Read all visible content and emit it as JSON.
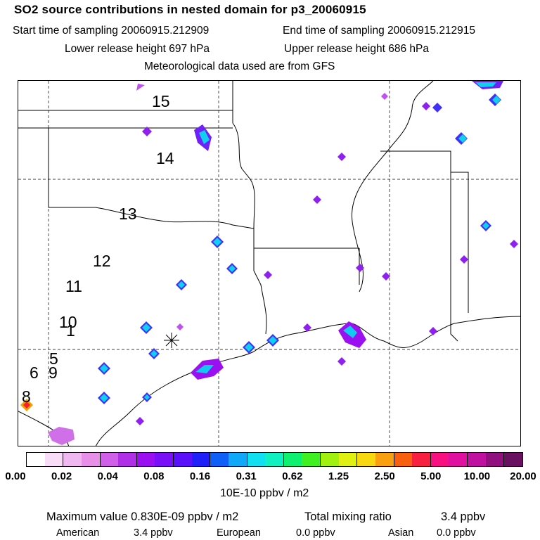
{
  "header": {
    "title": "SO2 source contributions in nested domain for p3_20060915",
    "start_time": "Start time of sampling 20060915.212909",
    "end_time": "End time of sampling 20060915.212915",
    "lower_height": "Lower release height  697 hPa",
    "upper_height": "Upper release height  686 hPa",
    "met_data": "Meteorological data used are from GFS"
  },
  "map": {
    "trajectory_labels": [
      "15",
      "14",
      "13",
      "12",
      "11",
      "10",
      "1",
      "5",
      "6",
      "9",
      "8"
    ],
    "receptor_marker": "receptor-star"
  },
  "colorbar": {
    "colors": [
      "#ffffff",
      "#f8dcf8",
      "#f0b8f0",
      "#e890e8",
      "#d060e8",
      "#b030e8",
      "#9a10f0",
      "#7a10f8",
      "#5a10f8",
      "#2020f8",
      "#1060f8",
      "#10a8f8",
      "#10e0f0",
      "#10f0c0",
      "#10f070",
      "#40f020",
      "#a0f010",
      "#e0f010",
      "#f8d810",
      "#f8a010",
      "#f86010",
      "#f82040",
      "#f81080",
      "#e010a0",
      "#c010a0",
      "#901080",
      "#6a1060"
    ],
    "ticks": [
      "0.00",
      "0.02",
      "0.04",
      "0.08",
      "0.16",
      "0.31",
      "0.62",
      "1.25",
      "2.50",
      "5.00",
      "10.00",
      "20.00"
    ],
    "units": "10E-10 ppbv / m2"
  },
  "footer": {
    "max_value": "Maximum value  0.830E-09 ppbv / m2",
    "total_label": "Total mixing ratio",
    "total_value": "3.4 ppbv",
    "american_label": "American",
    "american_value": "3.4 ppbv",
    "european_label": "European",
    "european_value": "0.0 ppbv",
    "asian_label": "Asian",
    "asian_value": "0.0 ppbv"
  }
}
